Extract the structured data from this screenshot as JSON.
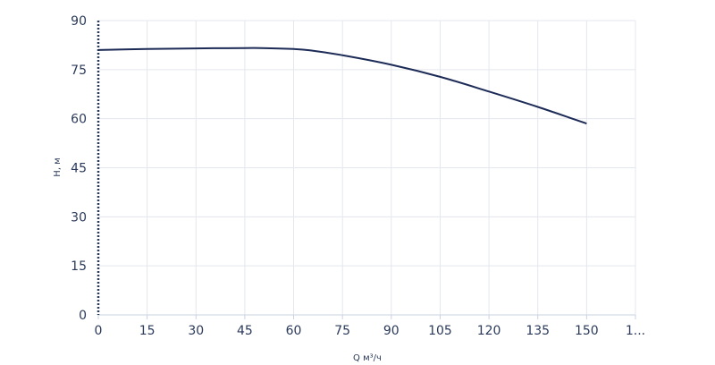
{
  "chart_data": {
    "type": "line",
    "xlabel": "Q м³/ч",
    "ylabel": "Н, м",
    "xlim": [
      0,
      165
    ],
    "ylim": [
      0,
      90
    ],
    "x_ticks": [
      "0",
      "15",
      "30",
      "45",
      "60",
      "75",
      "90",
      "105",
      "120",
      "135",
      "150",
      "1..."
    ],
    "y_ticks": [
      "90",
      "75",
      "60",
      "45",
      "30",
      "15",
      "0"
    ],
    "grid": true,
    "colors": {
      "curve": "#1d2b57",
      "grid": "#e3e7ee",
      "axis": "#c9d2e3"
    },
    "series": [
      {
        "x": [
          0,
          15,
          30,
          45,
          50,
          60,
          65,
          75,
          90,
          105,
          120,
          135,
          150
        ],
        "y": [
          81,
          81.3,
          81.5,
          81.6,
          81.6,
          81.3,
          80.9,
          79.4,
          76.5,
          72.8,
          68.3,
          63.6,
          58.5
        ]
      }
    ]
  }
}
